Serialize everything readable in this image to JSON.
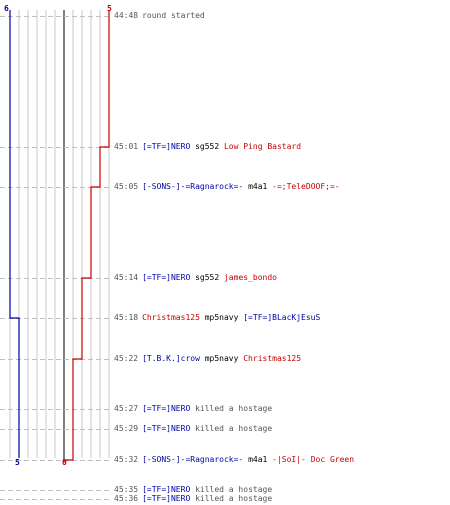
{
  "score": {
    "top_left": "6",
    "top_right": "5",
    "bottom_left": "5",
    "bottom_right": "0"
  },
  "colors": {
    "red": "#c80000",
    "blue": "#0000a8",
    "text": "#555555"
  },
  "events": [
    {
      "time": "44:48",
      "parts": [
        {
          "t": "round started",
          "c": "txt"
        }
      ]
    },
    {
      "time": "45:01",
      "parts": [
        {
          "t": "[=TF=]NERO",
          "c": "blue"
        },
        {
          "t": "sg552",
          "c": "weap"
        },
        {
          "t": "Low Ping Bastard",
          "c": "red"
        }
      ]
    },
    {
      "time": "45:05",
      "parts": [
        {
          "t": "[-SONS-]-=Ragnarock=-",
          "c": "blue"
        },
        {
          "t": "m4a1",
          "c": "weap"
        },
        {
          "t": "-=;TeleDOOF;=-",
          "c": "red"
        }
      ]
    },
    {
      "time": "45:14",
      "parts": [
        {
          "t": "[=TF=]NERO",
          "c": "blue"
        },
        {
          "t": "sg552",
          "c": "weap"
        },
        {
          "t": "james_bondo",
          "c": "red"
        }
      ]
    },
    {
      "time": "45:18",
      "parts": [
        {
          "t": "Christmas125",
          "c": "red"
        },
        {
          "t": "mp5navy",
          "c": "weap"
        },
        {
          "t": "[=TF=]BLacKjEsuS",
          "c": "blue"
        }
      ]
    },
    {
      "time": "45:22",
      "parts": [
        {
          "t": "[T.B.K.]crow",
          "c": "blue"
        },
        {
          "t": "mp5navy",
          "c": "weap"
        },
        {
          "t": "Christmas125",
          "c": "red"
        }
      ]
    },
    {
      "time": "45:27",
      "parts": [
        {
          "t": "[=TF=]NERO",
          "c": "blue"
        },
        {
          "t": "killed a hostage",
          "c": "txt"
        }
      ]
    },
    {
      "time": "45:29",
      "parts": [
        {
          "t": "[=TF=]NERO",
          "c": "blue"
        },
        {
          "t": "killed a hostage",
          "c": "txt"
        }
      ]
    },
    {
      "time": "45:32",
      "parts": [
        {
          "t": "[-SONS-]-=Ragnarock=-",
          "c": "blue"
        },
        {
          "t": "m4a1",
          "c": "weap"
        },
        {
          "t": "-|SoI|- Doc Green",
          "c": "red"
        }
      ]
    },
    {
      "time": "45:35",
      "parts": [
        {
          "t": "[=TF=]NERO",
          "c": "blue"
        },
        {
          "t": "killed a hostage",
          "c": "txt"
        }
      ]
    },
    {
      "time": "45:36",
      "parts": [
        {
          "t": "[=TF=]NERO",
          "c": "blue"
        },
        {
          "t": "killed a hostage",
          "c": "txt"
        }
      ]
    }
  ]
}
